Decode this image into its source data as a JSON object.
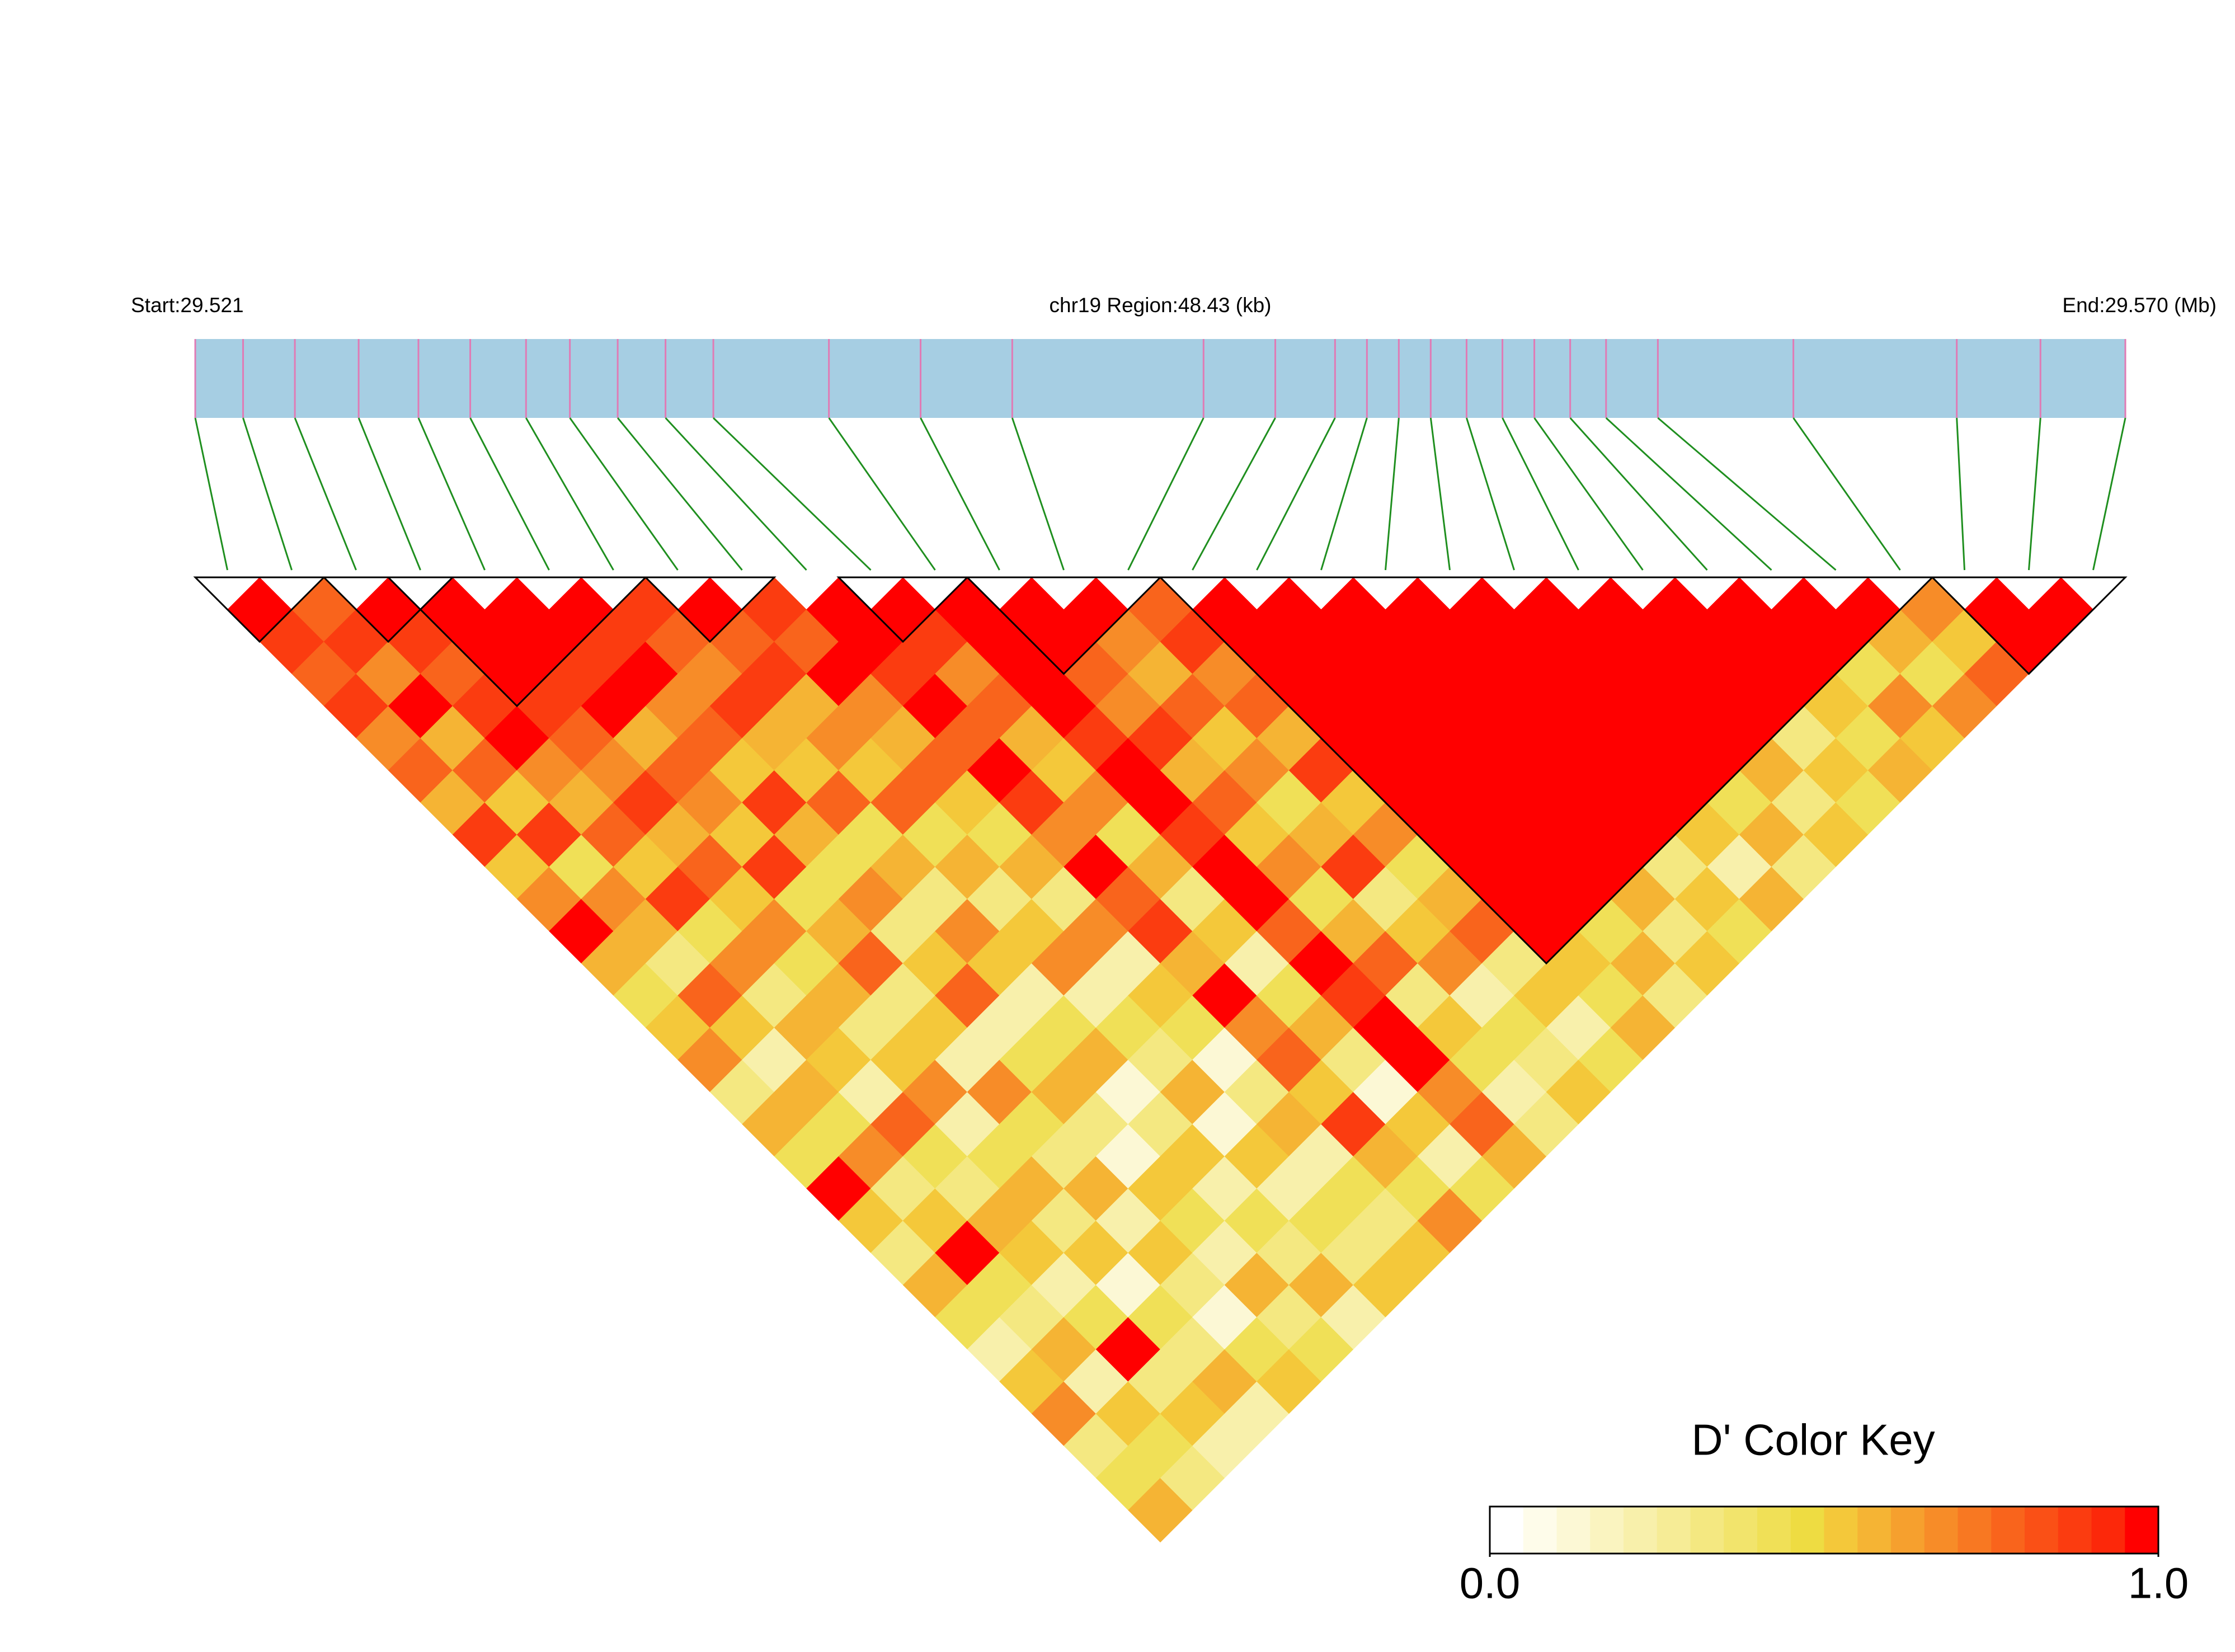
{
  "chart_data": {
    "type": "ld_heatmap",
    "start_label": "Start:29.521",
    "region_label": "chr19 Region:48.43 (kb)",
    "end_label": "End:29.570 (Mb)",
    "xlim": [
      0,
      48.43
    ],
    "snp_positions_kb": [
      0,
      1.2,
      2.5,
      4.1,
      5.6,
      6.9,
      8.3,
      9.4,
      10.6,
      11.8,
      13.0,
      15.9,
      18.2,
      20.5,
      25.3,
      27.1,
      28.6,
      29.4,
      30.2,
      31.0,
      31.9,
      32.8,
      33.6,
      34.5,
      35.4,
      36.7,
      40.1,
      44.2,
      46.3,
      48.43
    ],
    "bar_color": "#a6cee3",
    "snp_line_color": "#e07bb5",
    "connector_color": "#1f8f1f",
    "dprime": [
      [
        1.0,
        0.9,
        0.8,
        0.9,
        0.7,
        0.8,
        0.6,
        0.9,
        0.5,
        0.7,
        1.0,
        0.6,
        0.4,
        0.5,
        0.7,
        0.3,
        0.6,
        0.4,
        1.0,
        0.5,
        0.3,
        0.6,
        0.4,
        0.2,
        0.5,
        0.7,
        0.3,
        0.4,
        0.6
      ],
      [
        0.8,
        0.9,
        0.7,
        1.0,
        0.6,
        0.8,
        0.5,
        0.9,
        0.4,
        0.7,
        0.6,
        0.3,
        0.8,
        0.5,
        0.2,
        0.6,
        0.4,
        0.7,
        0.3,
        0.5,
        1.0,
        0.4,
        0.3,
        0.6,
        0.2,
        0.5,
        0.4,
        0.3
      ],
      [
        1.0,
        0.9,
        0.8,
        0.9,
        1.0,
        0.7,
        0.6,
        0.8,
        0.5,
        0.9,
        0.4,
        0.7,
        0.3,
        0.6,
        0.5,
        0.2,
        0.8,
        0.4,
        0.3,
        0.6,
        0.5,
        0.2,
        0.4,
        1.0,
        0.3,
        0.5,
        0.2
      ],
      [
        1.0,
        1.0,
        1.0,
        0.9,
        0.8,
        0.7,
        0.9,
        0.6,
        0.8,
        0.5,
        0.7,
        0.4,
        0.6,
        0.3,
        0.5,
        0.7,
        0.2,
        0.4,
        0.6,
        0.3,
        0.5,
        0.1,
        0.4,
        0.3,
        0.6,
        0.2
      ],
      [
        1.0,
        1.0,
        0.9,
        1.0,
        0.6,
        0.8,
        0.7,
        0.5,
        0.9,
        0.4,
        0.6,
        0.8,
        0.3,
        0.5,
        0.2,
        0.7,
        0.4,
        0.3,
        0.6,
        0.2,
        0.5,
        0.3,
        0.1,
        0.4,
        0.5
      ],
      [
        1.0,
        0.9,
        1.0,
        0.7,
        0.8,
        0.5,
        0.9,
        0.6,
        0.4,
        0.7,
        0.3,
        0.5,
        0.8,
        0.2,
        0.4,
        0.6,
        0.3,
        0.1,
        0.5,
        0.4,
        0.2,
        0.6,
        0.3,
        0.4
      ],
      [
        0.9,
        0.8,
        0.7,
        0.9,
        0.6,
        0.5,
        0.8,
        0.4,
        0.6,
        0.3,
        0.7,
        0.5,
        0.2,
        0.4,
        0.6,
        0.1,
        0.3,
        0.5,
        0.2,
        0.4,
        0.3,
        0.6,
        0.2
      ],
      [
        1.0,
        0.8,
        0.9,
        0.6,
        0.7,
        0.5,
        0.8,
        0.4,
        0.6,
        0.3,
        0.5,
        0.7,
        0.2,
        0.4,
        0.3,
        0.6,
        0.1,
        0.5,
        0.2,
        0.4,
        0.3,
        0.5
      ],
      [
        0.9,
        0.8,
        1.0,
        0.7,
        0.6,
        0.8,
        0.5,
        0.4,
        0.6,
        0.3,
        0.7,
        0.2,
        0.5,
        0.4,
        0.1,
        0.3,
        0.6,
        0.2,
        0.4,
        0.3,
        0.5
      ],
      [
        1.0,
        1.0,
        0.9,
        1.0,
        0.8,
        1.0,
        0.9,
        0.7,
        1.0,
        0.8,
        0.9,
        0.6,
        1.0,
        0.7,
        0.8,
        0.5,
        0.9,
        0.6,
        0.4,
        0.7
      ],
      [
        1.0,
        0.9,
        0.7,
        0.8,
        0.6,
        0.5,
        0.7,
        0.4,
        0.6,
        0.3,
        0.5,
        0.2,
        0.4,
        0.6,
        0.3,
        0.1,
        0.5,
        0.2,
        0.4
      ],
      [
        1.0,
        1.0,
        1.0,
        1.0,
        0.9,
        1.0,
        1.0,
        0.9,
        1.0,
        1.0,
        0.8,
        1.0,
        0.9,
        1.0,
        1.0,
        0.7,
        0.8,
        0.6
      ],
      [
        1.0,
        1.0,
        0.8,
        0.7,
        0.9,
        0.6,
        0.8,
        0.5,
        0.7,
        0.4,
        0.6,
        0.8,
        0.3,
        0.5,
        0.4,
        0.2,
        0.3
      ],
      [
        1.0,
        0.7,
        0.6,
        0.8,
        0.5,
        0.7,
        0.4,
        0.6,
        0.9,
        0.3,
        0.5,
        0.7,
        0.2,
        0.4,
        0.3,
        0.5
      ],
      [
        0.8,
        0.9,
        0.7,
        0.8,
        0.6,
        0.9,
        0.5,
        0.7,
        0.4,
        0.6,
        0.8,
        0.3,
        0.5,
        0.2,
        0.4
      ],
      [
        1.0,
        1.0,
        1.0,
        1.0,
        1.0,
        1.0,
        1.0,
        1.0,
        1.0,
        1.0,
        1.0,
        0.5,
        0.4,
        0.6
      ],
      [
        1.0,
        1.0,
        1.0,
        1.0,
        1.0,
        1.0,
        1.0,
        1.0,
        1.0,
        1.0,
        0.4,
        0.6,
        0.3
      ],
      [
        1.0,
        1.0,
        1.0,
        1.0,
        1.0,
        1.0,
        1.0,
        1.0,
        1.0,
        0.6,
        0.3,
        0.5
      ],
      [
        1.0,
        1.0,
        1.0,
        1.0,
        1.0,
        1.0,
        1.0,
        1.0,
        0.3,
        0.5,
        0.4
      ],
      [
        1.0,
        1.0,
        1.0,
        1.0,
        1.0,
        1.0,
        1.0,
        0.5,
        0.2,
        0.6
      ],
      [
        1.0,
        1.0,
        1.0,
        1.0,
        1.0,
        1.0,
        0.4,
        0.6,
        0.3
      ],
      [
        1.0,
        1.0,
        1.0,
        1.0,
        1.0,
        0.6,
        0.3,
        0.5
      ],
      [
        1.0,
        1.0,
        1.0,
        1.0,
        0.3,
        0.5,
        0.4
      ],
      [
        1.0,
        1.0,
        1.0,
        0.5,
        0.4,
        0.6
      ],
      [
        1.0,
        1.0,
        0.4,
        0.7,
        0.5
      ],
      [
        1.0,
        0.6,
        0.4,
        0.7
      ],
      [
        0.7,
        0.5,
        0.8
      ],
      [
        1.0,
        1.0
      ],
      [
        1.0
      ]
    ],
    "blocks": [
      [
        0,
        1
      ],
      [
        2,
        3
      ],
      [
        3,
        6
      ],
      [
        7,
        8
      ],
      [
        10,
        11
      ],
      [
        12,
        14
      ],
      [
        15,
        26
      ],
      [
        27,
        29
      ]
    ],
    "key": {
      "title": "D' Color Key",
      "lim": [
        0,
        1
      ],
      "ticks": [
        {
          "value": 0,
          "label": "0.0"
        },
        {
          "value": 1,
          "label": "1.0"
        }
      ],
      "colors": [
        "#ffffff",
        "#fefcea",
        "#fcf8d5",
        "#faf4c0",
        "#f8f0ab",
        "#f6ec96",
        "#f4e881",
        "#f2e46c",
        "#f0e057",
        "#eedc42",
        "#f4c83a",
        "#f5b434",
        "#f6a02e",
        "#f78c28",
        "#f87822",
        "#f9641c",
        "#fa5016",
        "#fb3c10",
        "#fc280a",
        "#ff0000"
      ]
    }
  }
}
